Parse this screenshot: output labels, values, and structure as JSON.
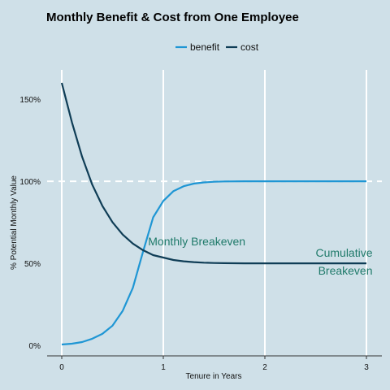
{
  "chart_data": {
    "type": "line",
    "title": "Monthly Benefit & Cost from One Employee",
    "xlabel": "Tenure in Years",
    "ylabel": "% Potential Monthly Value",
    "xlim": [
      0,
      3
    ],
    "ylim": [
      0,
      160
    ],
    "xticks": [
      {
        "value": 0,
        "label": "0"
      },
      {
        "value": 1,
        "label": "1"
      },
      {
        "value": 2,
        "label": "2"
      },
      {
        "value": 3,
        "label": "3"
      }
    ],
    "yticks": [
      {
        "value": 0,
        "label": "0%"
      },
      {
        "value": 50,
        "label": "50%"
      },
      {
        "value": 100,
        "label": "100%"
      },
      {
        "value": 150,
        "label": "150%"
      }
    ],
    "grid": "vertical",
    "legend_position": "top",
    "reference_line": {
      "y": 100,
      "style": "dashed"
    },
    "series": [
      {
        "name": "benefit",
        "color": "#1f96d4",
        "x": [
          0,
          0.1,
          0.2,
          0.3,
          0.4,
          0.5,
          0.6,
          0.7,
          0.8,
          0.9,
          1.0,
          1.1,
          1.2,
          1.3,
          1.4,
          1.5,
          1.6,
          1.8,
          2.0,
          2.25,
          2.5,
          2.75,
          3.0
        ],
        "values": [
          0.5,
          1,
          2,
          4,
          7,
          12,
          21,
          35,
          57,
          78,
          88,
          94,
          97,
          98.6,
          99.3,
          99.7,
          99.9,
          100,
          100,
          100,
          100,
          100,
          100
        ]
      },
      {
        "name": "cost",
        "color": "#0f3d56",
        "x": [
          0,
          0.1,
          0.2,
          0.3,
          0.4,
          0.5,
          0.6,
          0.7,
          0.8,
          0.9,
          1.0,
          1.1,
          1.2,
          1.3,
          1.4,
          1.5,
          1.6,
          1.8,
          2.0,
          2.25,
          2.5,
          2.75,
          3.0
        ],
        "values": [
          160,
          136,
          115,
          98,
          85,
          75,
          67.5,
          62,
          58,
          55,
          53.5,
          52,
          51.2,
          50.7,
          50.4,
          50.2,
          50.1,
          50,
          50,
          50,
          50,
          50,
          50
        ]
      }
    ],
    "annotations": [
      {
        "text": "Monthly Breakeven",
        "x": 0.85,
        "y": 61,
        "anchor": "start"
      },
      {
        "text": "Cumulative",
        "x": 3.06,
        "y": 54,
        "anchor": "end"
      },
      {
        "text": "Breakeven",
        "x": 3.06,
        "y": 43,
        "anchor": "end"
      }
    ]
  }
}
